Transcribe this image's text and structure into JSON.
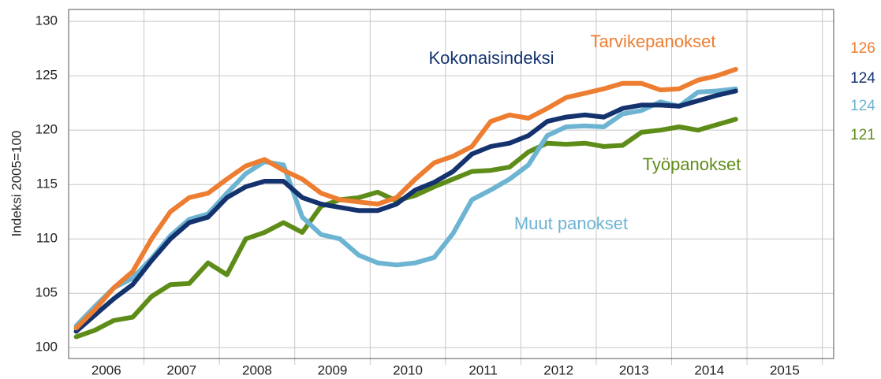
{
  "chart_data": {
    "type": "line",
    "ylabel": "Indeksi 2005=100",
    "x": [
      2006.1,
      2006.35,
      2006.6,
      2006.85,
      2007.1,
      2007.35,
      2007.6,
      2007.85,
      2008.1,
      2008.35,
      2008.6,
      2008.85,
      2009.1,
      2009.35,
      2009.6,
      2009.85,
      2010.1,
      2010.35,
      2010.6,
      2010.85,
      2011.1,
      2011.35,
      2011.6,
      2011.85,
      2012.1,
      2012.35,
      2012.6,
      2012.85,
      2013.1,
      2013.35,
      2013.6,
      2013.85,
      2014.1,
      2014.35,
      2014.6,
      2014.85
    ],
    "xlim": [
      2006,
      2016.15
    ],
    "xticks": [
      {
        "value": 2006.5,
        "label": "2006"
      },
      {
        "value": 2007.5,
        "label": "2007"
      },
      {
        "value": 2008.5,
        "label": "2008"
      },
      {
        "value": 2009.5,
        "label": "2009"
      },
      {
        "value": 2010.5,
        "label": "2010"
      },
      {
        "value": 2011.5,
        "label": "2011"
      },
      {
        "value": 2012.5,
        "label": "2012"
      },
      {
        "value": 2013.5,
        "label": "2013"
      },
      {
        "value": 2014.5,
        "label": "2014"
      },
      {
        "value": 2015.5,
        "label": "2015"
      }
    ],
    "xgrid": [
      2007,
      2008,
      2009,
      2010,
      2011,
      2012,
      2013,
      2014,
      2015,
      2016
    ],
    "ylim": [
      99,
      131.1
    ],
    "yticks": [
      100,
      105,
      110,
      115,
      120,
      125,
      130
    ],
    "grid": true,
    "series": [
      {
        "name": "Tarvikepanokset",
        "color": "#ed7d31",
        "end_label": "126",
        "values": [
          101.8,
          103.5,
          105.5,
          107.0,
          110.0,
          112.5,
          113.8,
          114.2,
          115.5,
          116.7,
          117.3,
          116.3,
          115.5,
          114.2,
          113.6,
          113.4,
          113.2,
          113.8,
          115.5,
          117.0,
          117.6,
          118.5,
          120.8,
          121.4,
          121.1,
          122.0,
          123.0,
          123.4,
          123.8,
          124.3,
          124.3,
          123.7,
          123.8,
          124.6,
          125.0,
          125.6
        ]
      },
      {
        "name": "Kokonaisindeksi",
        "color": "#14336e",
        "end_label": "124",
        "values": [
          101.5,
          103.0,
          104.5,
          105.8,
          108.0,
          110.0,
          111.5,
          112.0,
          113.8,
          114.8,
          115.3,
          115.3,
          113.8,
          113.2,
          112.9,
          112.6,
          112.6,
          113.2,
          114.5,
          115.2,
          116.2,
          117.8,
          118.5,
          118.8,
          119.5,
          120.8,
          121.2,
          121.4,
          121.2,
          122.0,
          122.3,
          122.3,
          122.2,
          122.7,
          123.2,
          123.6
        ]
      },
      {
        "name": "Muut panokset",
        "color": "#6cb4d2",
        "end_label": "124",
        "values": [
          102.0,
          103.8,
          105.5,
          106.4,
          108.2,
          110.3,
          111.8,
          112.3,
          114.2,
          116.0,
          117.1,
          116.8,
          112.0,
          110.4,
          110.0,
          108.5,
          107.8,
          107.6,
          107.8,
          108.3,
          110.5,
          113.6,
          114.5,
          115.5,
          116.8,
          119.5,
          120.3,
          120.4,
          120.3,
          121.5,
          121.8,
          122.6,
          122.2,
          123.5,
          123.6,
          123.8
        ]
      },
      {
        "name": "Työpanokset",
        "color": "#5e8c18",
        "end_label": "121",
        "values": [
          101.0,
          101.6,
          102.5,
          102.8,
          104.7,
          105.8,
          105.9,
          107.8,
          106.7,
          110.0,
          110.6,
          111.5,
          110.6,
          113.0,
          113.6,
          113.8,
          114.3,
          113.5,
          114.0,
          114.8,
          115.5,
          116.2,
          116.3,
          116.6,
          118.0,
          118.8,
          118.7,
          118.8,
          118.5,
          118.6,
          119.8,
          120.0,
          120.3,
          120.0,
          120.5,
          121.0
        ]
      }
    ]
  }
}
